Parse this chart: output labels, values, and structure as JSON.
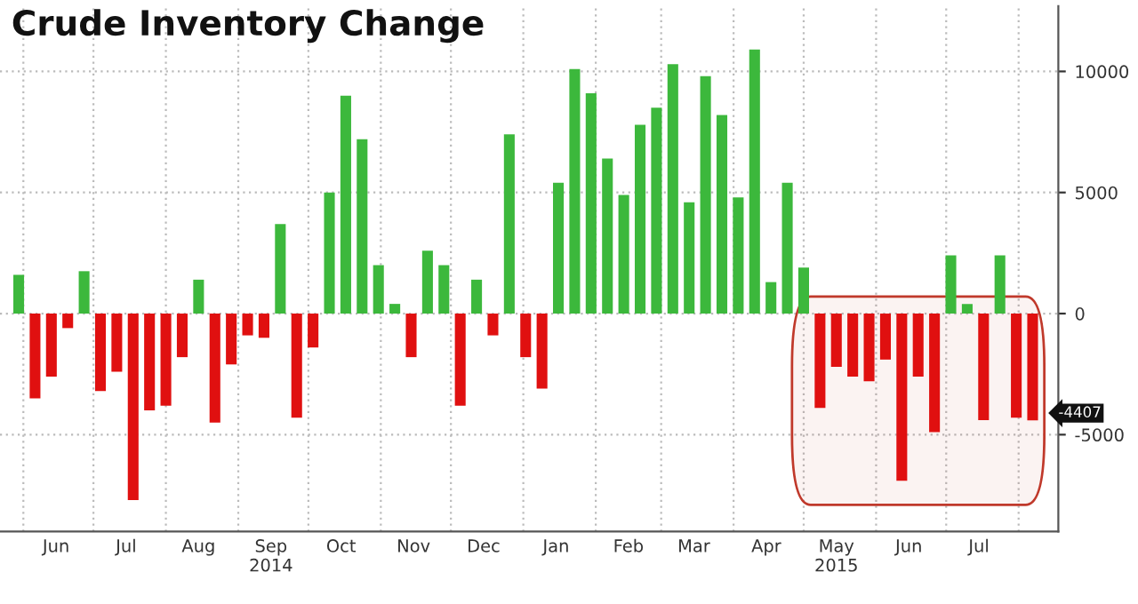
{
  "chart_data": {
    "type": "bar",
    "title": "Crude Inventory Change",
    "x": [
      "2014-05-30",
      "2014-06-06",
      "2014-06-13",
      "2014-06-20",
      "2014-06-27",
      "2014-07-04",
      "2014-07-11",
      "2014-07-18",
      "2014-07-25",
      "2014-08-01",
      "2014-08-08",
      "2014-08-15",
      "2014-08-22",
      "2014-08-29",
      "2014-09-05",
      "2014-09-12",
      "2014-09-19",
      "2014-09-26",
      "2014-10-03",
      "2014-10-10",
      "2014-10-17",
      "2014-10-24",
      "2014-10-31",
      "2014-11-07",
      "2014-11-14",
      "2014-11-21",
      "2014-11-28",
      "2014-12-05",
      "2014-12-12",
      "2014-12-19",
      "2014-12-26",
      "2015-01-02",
      "2015-01-09",
      "2015-01-16",
      "2015-01-23",
      "2015-01-30",
      "2015-02-06",
      "2015-02-13",
      "2015-02-20",
      "2015-02-27",
      "2015-03-06",
      "2015-03-13",
      "2015-03-20",
      "2015-03-27",
      "2015-04-03",
      "2015-04-10",
      "2015-04-17",
      "2015-04-24",
      "2015-05-01",
      "2015-05-08",
      "2015-05-15",
      "2015-05-22",
      "2015-05-29",
      "2015-06-05",
      "2015-06-12",
      "2015-06-19",
      "2015-06-26",
      "2015-07-03",
      "2015-07-10",
      "2015-07-17",
      "2015-07-24",
      "2015-07-31",
      "2015-08-07"
    ],
    "values": [
      1600,
      -3500,
      -2600,
      -600,
      1750,
      -3200,
      -2400,
      -7700,
      -4000,
      -3800,
      -1800,
      1400,
      -4500,
      -2100,
      -900,
      -1000,
      3700,
      -4300,
      -1400,
      5000,
      9000,
      7200,
      2000,
      400,
      -1800,
      2600,
      2000,
      -3800,
      1400,
      -900,
      7400,
      -1800,
      -3100,
      5400,
      10100,
      9100,
      6400,
      4900,
      7800,
      8500,
      10300,
      4600,
      9800,
      8200,
      4800,
      10900,
      1300,
      5400,
      1900,
      -3900,
      -2200,
      -2600,
      -2800,
      -1900,
      -6900,
      -2600,
      -4900,
      2400,
      400,
      -4400,
      2400,
      -4300,
      -4407
    ],
    "colors": [
      "#3cb83c",
      "#e01010",
      "#e01010",
      "#e01010",
      "#3cb83c",
      "#e01010",
      "#e01010",
      "#e01010",
      "#e01010",
      "#e01010",
      "#e01010",
      "#3cb83c",
      "#e01010",
      "#e01010",
      "#e01010",
      "#e01010",
      "#3cb83c",
      "#e01010",
      "#e01010",
      "#3cb83c",
      "#3cb83c",
      "#3cb83c",
      "#3cb83c",
      "#3cb83c",
      "#e01010",
      "#3cb83c",
      "#3cb83c",
      "#e01010",
      "#3cb83c",
      "#e01010",
      "#3cb83c",
      "#e01010",
      "#e01010",
      "#3cb83c",
      "#3cb83c",
      "#3cb83c",
      "#3cb83c",
      "#3cb83c",
      "#3cb83c",
      "#3cb83c",
      "#3cb83c",
      "#3cb83c",
      "#3cb83c",
      "#3cb83c",
      "#3cb83c",
      "#3cb83c",
      "#3cb83c",
      "#3cb83c",
      "#3cb83c",
      "#e01010",
      "#e01010",
      "#e01010",
      "#e01010",
      "#e01010",
      "#e01010",
      "#e01010",
      "#e01010",
      "#3cb83c",
      "#3cb83c",
      "#e01010",
      "#3cb83c",
      "#e01010",
      "#e01010"
    ],
    "xlim": [
      "2014-05-22",
      "2015-08-18"
    ],
    "xticks": [
      {
        "value": "2014-06-01",
        "label": null
      },
      {
        "value": "2014-06-15",
        "label": "Jun"
      },
      {
        "value": "2014-07-01",
        "label": null
      },
      {
        "value": "2014-07-15",
        "label": "Jul"
      },
      {
        "value": "2014-08-01",
        "label": null
      },
      {
        "value": "2014-08-15",
        "label": "Aug"
      },
      {
        "value": "2014-09-01",
        "label": null
      },
      {
        "value": "2014-09-15",
        "label": "Sep\n2014"
      },
      {
        "value": "2014-10-01",
        "label": null
      },
      {
        "value": "2014-10-15",
        "label": "Oct"
      },
      {
        "value": "2014-11-01",
        "label": null
      },
      {
        "value": "2014-11-15",
        "label": "Nov"
      },
      {
        "value": "2014-12-01",
        "label": null
      },
      {
        "value": "2014-12-15",
        "label": "Dec"
      },
      {
        "value": "2015-01-01",
        "label": null
      },
      {
        "value": "2015-01-15",
        "label": "Jan"
      },
      {
        "value": "2015-02-01",
        "label": null
      },
      {
        "value": "2015-02-15",
        "label": "Feb"
      },
      {
        "value": "2015-03-01",
        "label": null
      },
      {
        "value": "2015-03-15",
        "label": "Mar"
      },
      {
        "value": "2015-04-01",
        "label": null
      },
      {
        "value": "2015-04-15",
        "label": "Apr"
      },
      {
        "value": "2015-05-01",
        "label": null
      },
      {
        "value": "2015-05-15",
        "label": "May\n2015"
      },
      {
        "value": "2015-06-01",
        "label": null
      },
      {
        "value": "2015-06-15",
        "label": "Jun"
      },
      {
        "value": "2015-07-01",
        "label": null
      },
      {
        "value": "2015-07-15",
        "label": "Jul"
      },
      {
        "value": "2015-08-01",
        "label": null
      }
    ],
    "ylim": [
      -9000,
      12700
    ],
    "yticks": [
      -5000,
      0,
      5000,
      10000
    ],
    "grid": true,
    "annotations": [
      {
        "text": "-4407",
        "x": "2015-08-07",
        "y": -4407
      }
    ],
    "bands": [
      {
        "axis": "x",
        "from": "2015-04-26",
        "to": "2015-08-12",
        "color": "#c0392b"
      }
    ]
  }
}
